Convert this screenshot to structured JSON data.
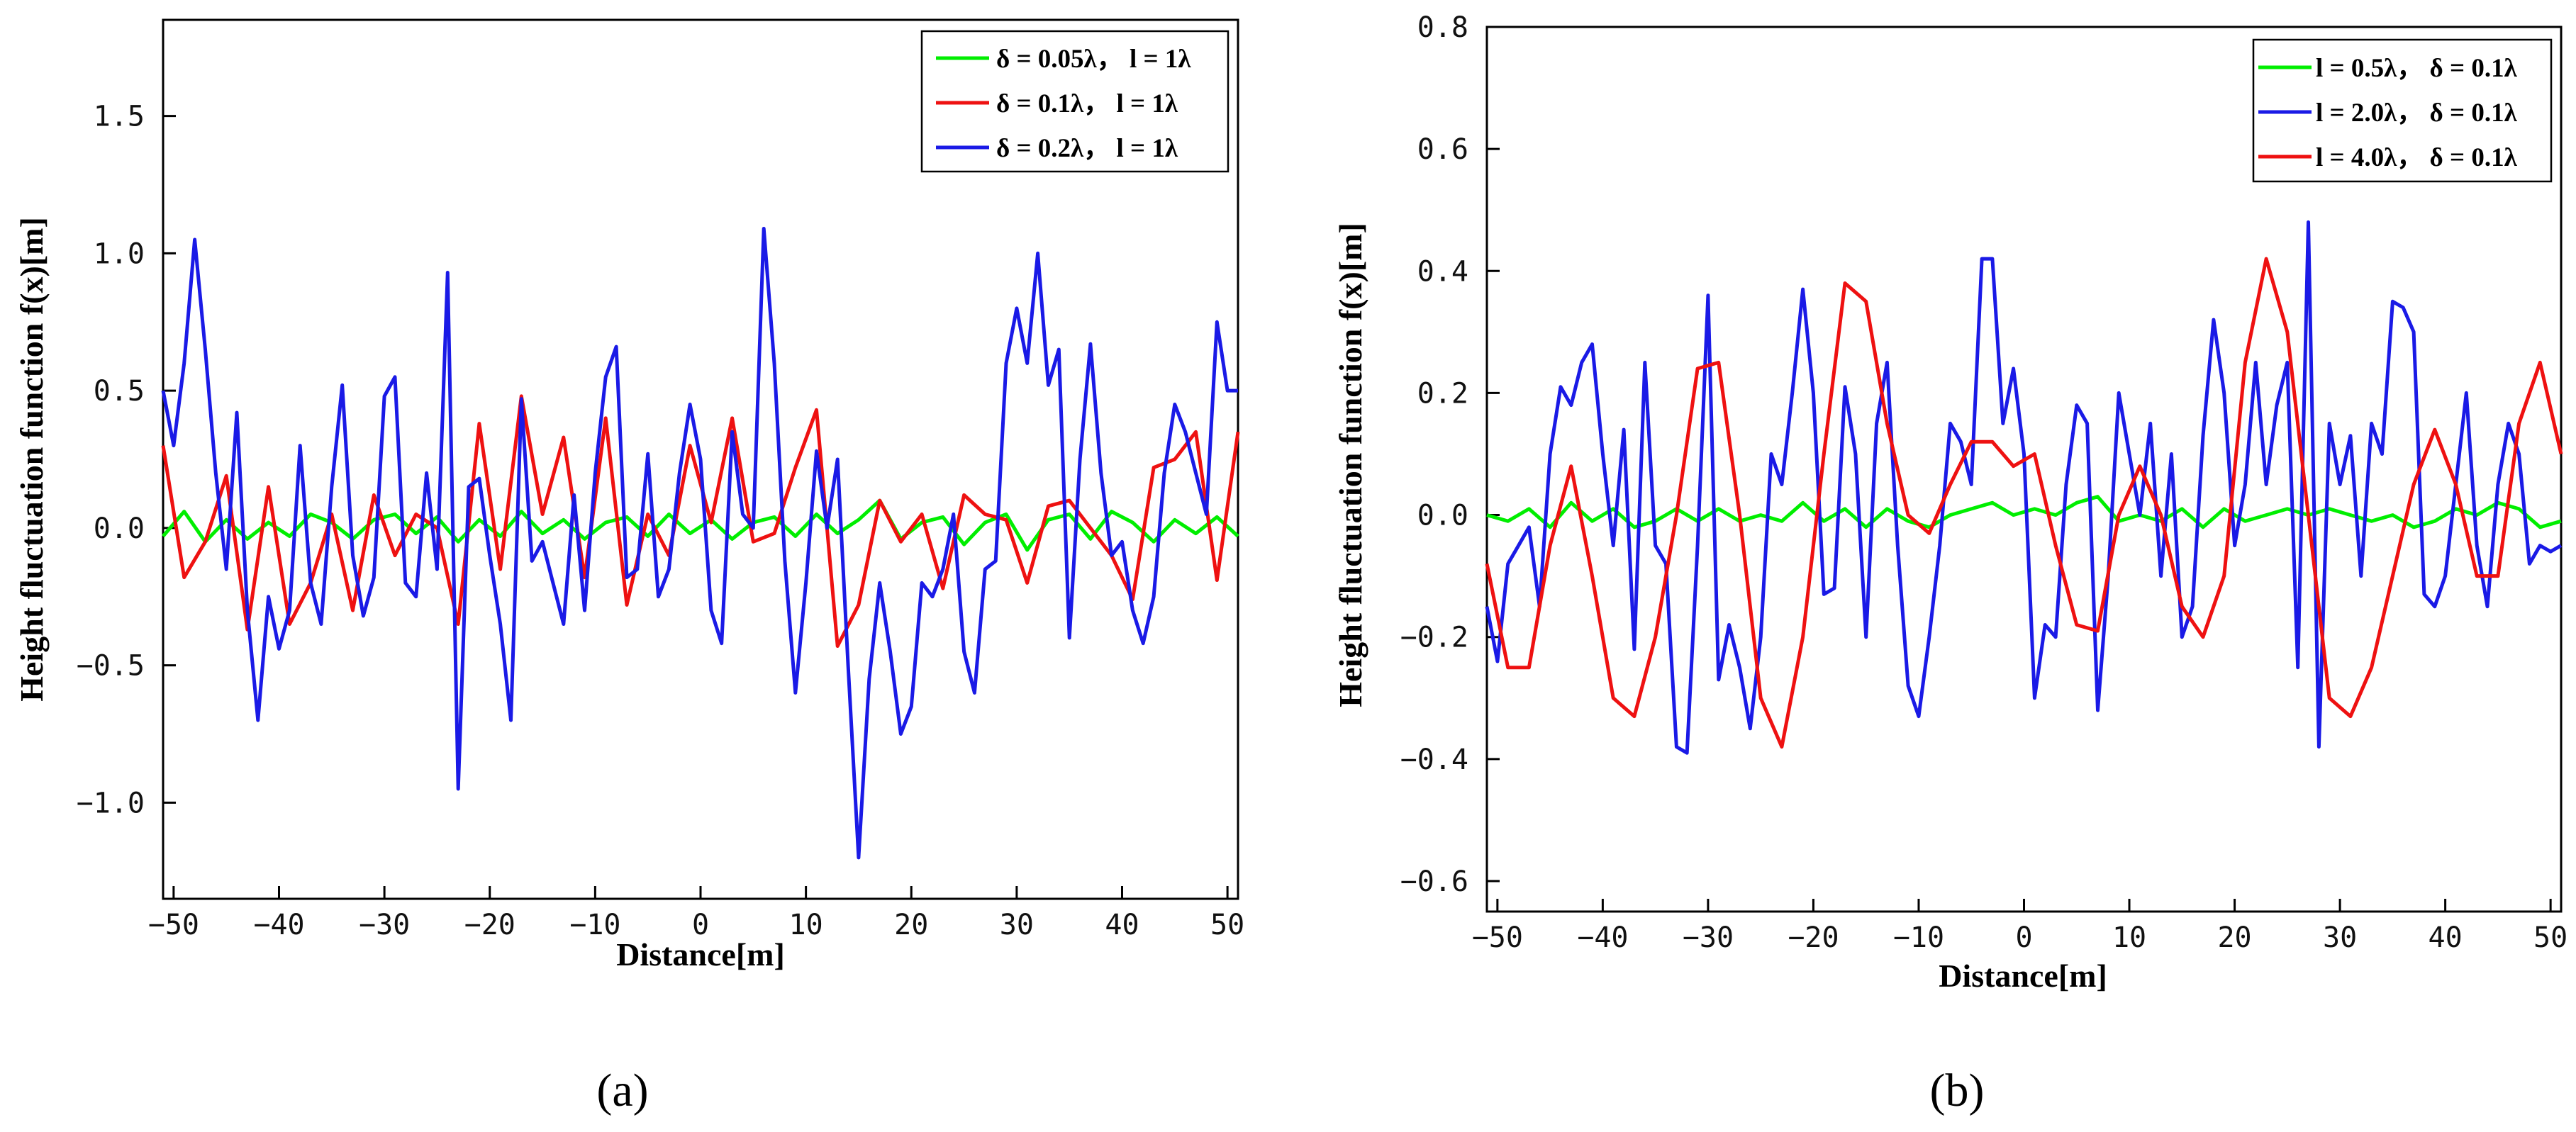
{
  "chart_data": [
    {
      "type": "line",
      "panel": "a",
      "caption": "(a)",
      "xlabel": "Distance[m]",
      "ylabel": "Height fluctuation function f(x)[m]",
      "xlim": [
        -51,
        51
      ],
      "ylim": [
        -1.35,
        1.85
      ],
      "xticks": [
        -50,
        -40,
        -30,
        -20,
        -10,
        0,
        10,
        20,
        30,
        40,
        50
      ],
      "xtick_labels": [
        "−50",
        "−40",
        "−30",
        "−20",
        "−10",
        "0",
        "10",
        "20",
        "30",
        "40",
        "50"
      ],
      "yticks": [
        -1.0,
        -0.5,
        0.0,
        0.5,
        1.0,
        1.5
      ],
      "ytick_labels": [
        "−1.0",
        "−0.5",
        "0.0",
        "0.5",
        "1.0",
        "1.5"
      ],
      "legend_position": "top-right",
      "series": [
        {
          "name": "δ = 0.05λ， l = 1λ",
          "color": "#00ee00",
          "x": [
            -51,
            -49,
            -47,
            -45,
            -43,
            -41,
            -39,
            -37,
            -35,
            -33,
            -31,
            -29,
            -27,
            -25,
            -23,
            -21,
            -19,
            -17,
            -15,
            -13,
            -11,
            -9,
            -7,
            -5,
            -3,
            -1,
            1,
            3,
            5,
            7,
            9,
            11,
            13,
            15,
            17,
            19,
            21,
            23,
            25,
            27,
            29,
            31,
            33,
            35,
            37,
            39,
            41,
            43,
            45,
            47,
            49,
            51
          ],
          "values": [
            -0.03,
            0.06,
            -0.05,
            0.03,
            -0.04,
            0.02,
            -0.03,
            0.05,
            0.02,
            -0.04,
            0.03,
            0.05,
            -0.02,
            0.04,
            -0.05,
            0.03,
            -0.03,
            0.06,
            -0.02,
            0.03,
            -0.04,
            0.02,
            0.04,
            -0.03,
            0.05,
            -0.02,
            0.03,
            -0.04,
            0.02,
            0.04,
            -0.03,
            0.05,
            -0.02,
            0.03,
            0.1,
            -0.04,
            0.02,
            0.04,
            -0.06,
            0.02,
            0.05,
            -0.08,
            0.03,
            0.05,
            -0.04,
            0.06,
            0.02,
            -0.05,
            0.03,
            -0.02,
            0.04,
            -0.03
          ]
        },
        {
          "name": "δ = 0.1λ， l = 1λ",
          "color": "#ee1111",
          "x": [
            -51,
            -49,
            -47,
            -45,
            -43,
            -41,
            -39,
            -37,
            -35,
            -33,
            -31,
            -29,
            -27,
            -25,
            -23,
            -21,
            -19,
            -17,
            -15,
            -13,
            -11,
            -9,
            -7,
            -5,
            -3,
            -1,
            1,
            3,
            5,
            7,
            9,
            11,
            13,
            15,
            17,
            19,
            21,
            23,
            25,
            27,
            29,
            31,
            33,
            35,
            37,
            39,
            41,
            43,
            45,
            47,
            49,
            51
          ],
          "values": [
            0.3,
            -0.18,
            -0.05,
            0.19,
            -0.37,
            0.15,
            -0.35,
            -0.2,
            0.05,
            -0.3,
            0.12,
            -0.1,
            0.05,
            0.0,
            -0.35,
            0.38,
            -0.15,
            0.48,
            0.05,
            0.33,
            -0.18,
            0.4,
            -0.28,
            0.05,
            -0.1,
            0.3,
            0.02,
            0.4,
            -0.05,
            -0.02,
            0.22,
            0.43,
            -0.43,
            -0.28,
            0.1,
            -0.05,
            0.05,
            -0.22,
            0.12,
            0.05,
            0.03,
            -0.2,
            0.08,
            0.1,
            0.0,
            -0.1,
            -0.26,
            0.22,
            0.25,
            0.35,
            -0.19,
            0.35
          ]
        },
        {
          "name": "δ = 0.2λ， l = 1λ",
          "color": "#1a1ae6",
          "x": [
            -51,
            -50,
            -49,
            -48,
            -47,
            -46,
            -45,
            -44,
            -43,
            -42,
            -41,
            -40,
            -39,
            -38,
            -37,
            -36,
            -35,
            -34,
            -33,
            -32,
            -31,
            -30,
            -29,
            -28,
            -27,
            -26,
            -25,
            -24,
            -23,
            -22,
            -21,
            -20,
            -19,
            -18,
            -17,
            -16,
            -15,
            -14,
            -13,
            -12,
            -11,
            -10,
            -9,
            -8,
            -7,
            -6,
            -5,
            -4,
            -3,
            -2,
            -1,
            0,
            1,
            2,
            3,
            4,
            5,
            6,
            7,
            8,
            9,
            10,
            11,
            12,
            13,
            14,
            15,
            16,
            17,
            18,
            19,
            20,
            21,
            22,
            23,
            24,
            25,
            26,
            27,
            28,
            29,
            30,
            31,
            32,
            33,
            34,
            35,
            36,
            37,
            38,
            39,
            40,
            41,
            42,
            43,
            44,
            45,
            46,
            47,
            48,
            49,
            50,
            51
          ],
          "values": [
            0.5,
            0.3,
            0.6,
            1.05,
            0.65,
            0.2,
            -0.15,
            0.42,
            -0.3,
            -0.7,
            -0.25,
            -0.44,
            -0.3,
            0.3,
            -0.2,
            -0.35,
            0.15,
            0.52,
            -0.1,
            -0.32,
            -0.18,
            0.48,
            0.55,
            -0.2,
            -0.25,
            0.2,
            -0.15,
            0.93,
            -0.95,
            0.15,
            0.18,
            -0.1,
            -0.35,
            -0.7,
            0.47,
            -0.12,
            -0.05,
            -0.2,
            -0.35,
            0.12,
            -0.3,
            0.2,
            0.55,
            0.66,
            -0.18,
            -0.15,
            0.27,
            -0.25,
            -0.15,
            0.2,
            0.45,
            0.25,
            -0.3,
            -0.42,
            0.35,
            0.05,
            0.0,
            1.09,
            0.6,
            -0.12,
            -0.6,
            -0.2,
            0.28,
            0.0,
            0.25,
            -0.5,
            -1.2,
            -0.55,
            -0.2,
            -0.45,
            -0.75,
            -0.65,
            -0.2,
            -0.25,
            -0.15,
            0.05,
            -0.45,
            -0.6,
            -0.15,
            -0.12,
            0.6,
            0.8,
            0.6,
            1.0,
            0.52,
            0.65,
            -0.4,
            0.25,
            0.67,
            0.2,
            -0.1,
            -0.05,
            -0.3,
            -0.42,
            -0.25,
            0.2,
            0.45,
            0.35,
            0.2,
            0.05,
            0.75,
            0.5,
            0.5
          ]
        }
      ]
    },
    {
      "type": "line",
      "panel": "b",
      "caption": "(b)",
      "xlabel": "Distance[m]",
      "ylabel": "Height fluctuation function f(x)[m]",
      "xlim": [
        -51,
        51
      ],
      "ylim": [
        -0.65,
        0.8
      ],
      "xticks": [
        -50,
        -40,
        -30,
        -20,
        -10,
        0,
        10,
        20,
        30,
        40,
        50
      ],
      "xtick_labels": [
        "−50",
        "−40",
        "−30",
        "−20",
        "−10",
        "0",
        "10",
        "20",
        "30",
        "40",
        "50"
      ],
      "yticks": [
        -0.6,
        -0.4,
        -0.2,
        0.0,
        0.2,
        0.4,
        0.6,
        0.8
      ],
      "ytick_labels": [
        "−0.6",
        "−0.4",
        "−0.2",
        "0.0",
        "0.2",
        "0.4",
        "0.6",
        "0.8"
      ],
      "legend_position": "top-right",
      "series": [
        {
          "name": "l = 0.5λ， δ = 0.1λ",
          "color": "#00ee00",
          "x": [
            -51,
            -49,
            -47,
            -45,
            -43,
            -41,
            -39,
            -37,
            -35,
            -33,
            -31,
            -29,
            -27,
            -25,
            -23,
            -21,
            -19,
            -17,
            -15,
            -13,
            -11,
            -9,
            -7,
            -5,
            -3,
            -1,
            1,
            3,
            5,
            7,
            9,
            11,
            13,
            15,
            17,
            19,
            21,
            23,
            25,
            27,
            29,
            31,
            33,
            35,
            37,
            39,
            41,
            43,
            45,
            47,
            49,
            51
          ],
          "values": [
            0.0,
            -0.01,
            0.01,
            -0.02,
            0.02,
            -0.01,
            0.01,
            -0.02,
            -0.01,
            0.01,
            -0.01,
            0.01,
            -0.01,
            0.0,
            -0.01,
            0.02,
            -0.01,
            0.01,
            -0.02,
            0.01,
            -0.01,
            -0.02,
            0.0,
            0.01,
            0.02,
            0.0,
            0.01,
            0.0,
            0.02,
            0.03,
            -0.01,
            0.0,
            -0.01,
            0.01,
            -0.02,
            0.01,
            -0.01,
            0.0,
            0.01,
            0.0,
            0.01,
            0.0,
            -0.01,
            0.0,
            -0.02,
            -0.01,
            0.01,
            0.0,
            0.02,
            0.01,
            -0.02,
            -0.01
          ]
        },
        {
          "name": "l = 2.0λ， δ = 0.1λ",
          "color": "#1a1ae6",
          "x": [
            -51,
            -50,
            -49,
            -48,
            -47,
            -46,
            -45,
            -44,
            -43,
            -42,
            -41,
            -40,
            -39,
            -38,
            -37,
            -36,
            -35,
            -34,
            -33,
            -32,
            -31,
            -30,
            -29,
            -28,
            -27,
            -26,
            -25,
            -24,
            -23,
            -22,
            -21,
            -20,
            -19,
            -18,
            -17,
            -16,
            -15,
            -14,
            -13,
            -12,
            -11,
            -10,
            -9,
            -8,
            -7,
            -6,
            -5,
            -4,
            -3,
            -2,
            -1,
            0,
            1,
            2,
            3,
            4,
            5,
            6,
            7,
            8,
            9,
            10,
            11,
            12,
            13,
            14,
            15,
            16,
            17,
            18,
            19,
            20,
            21,
            22,
            23,
            24,
            25,
            26,
            27,
            28,
            29,
            30,
            31,
            32,
            33,
            34,
            35,
            36,
            37,
            38,
            39,
            40,
            41,
            42,
            43,
            44,
            45,
            46,
            47,
            48,
            49,
            50,
            51
          ],
          "values": [
            -0.15,
            -0.24,
            -0.08,
            -0.05,
            -0.02,
            -0.15,
            0.1,
            0.21,
            0.18,
            0.25,
            0.28,
            0.1,
            -0.05,
            0.14,
            -0.22,
            0.25,
            -0.05,
            -0.08,
            -0.38,
            -0.39,
            -0.05,
            0.36,
            -0.27,
            -0.18,
            -0.25,
            -0.35,
            -0.2,
            0.1,
            0.05,
            0.2,
            0.37,
            0.2,
            -0.13,
            -0.12,
            0.21,
            0.1,
            -0.2,
            0.15,
            0.25,
            -0.05,
            -0.28,
            -0.33,
            -0.2,
            -0.05,
            0.15,
            0.12,
            0.05,
            0.42,
            0.42,
            0.15,
            0.24,
            0.1,
            -0.3,
            -0.18,
            -0.2,
            0.05,
            0.18,
            0.15,
            -0.32,
            -0.1,
            0.2,
            0.1,
            0.0,
            0.15,
            -0.1,
            0.1,
            -0.2,
            -0.15,
            0.13,
            0.32,
            0.2,
            -0.05,
            0.05,
            0.25,
            0.05,
            0.18,
            0.25,
            -0.25,
            0.48,
            -0.38,
            0.15,
            0.05,
            0.13,
            -0.1,
            0.15,
            0.1,
            0.35,
            0.34,
            0.3,
            -0.13,
            -0.15,
            -0.1,
            0.05,
            0.2,
            -0.05,
            -0.15,
            0.05,
            0.15,
            0.1,
            -0.08,
            -0.05,
            -0.06,
            -0.05
          ]
        },
        {
          "name": "l = 4.0λ， δ = 0.1λ",
          "color": "#ee1111",
          "x": [
            -51,
            -49,
            -47,
            -45,
            -43,
            -41,
            -39,
            -37,
            -35,
            -33,
            -31,
            -29,
            -27,
            -25,
            -23,
            -21,
            -19,
            -17,
            -15,
            -13,
            -11,
            -9,
            -7,
            -5,
            -3,
            -1,
            1,
            3,
            5,
            7,
            9,
            11,
            13,
            15,
            17,
            19,
            21,
            23,
            25,
            27,
            29,
            31,
            33,
            35,
            37,
            39,
            41,
            43,
            45,
            47,
            49,
            51
          ],
          "values": [
            -0.08,
            -0.25,
            -0.25,
            -0.05,
            0.08,
            -0.1,
            -0.3,
            -0.33,
            -0.2,
            0.0,
            0.24,
            0.25,
            0.0,
            -0.3,
            -0.38,
            -0.2,
            0.1,
            0.38,
            0.35,
            0.15,
            0.0,
            -0.03,
            0.05,
            0.12,
            0.12,
            0.08,
            0.1,
            -0.05,
            -0.18,
            -0.19,
            0.0,
            0.08,
            0.0,
            -0.15,
            -0.2,
            -0.1,
            0.25,
            0.42,
            0.3,
            0.0,
            -0.3,
            -0.33,
            -0.25,
            -0.1,
            0.05,
            0.14,
            0.05,
            -0.1,
            -0.1,
            0.15,
            0.25,
            0.1
          ]
        }
      ]
    }
  ]
}
